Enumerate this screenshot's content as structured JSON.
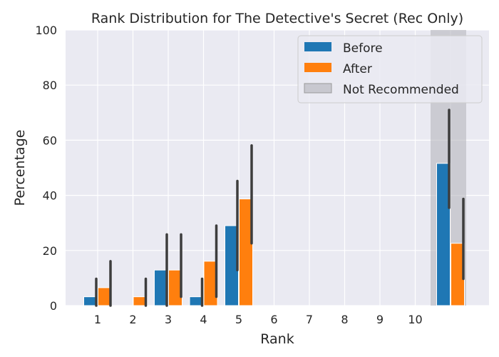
{
  "chart_data": {
    "type": "bar",
    "title": "Rank Distribution for The Detective's Secret (Rec Only)",
    "xlabel": "Rank",
    "ylabel": "Percentage",
    "ylim": [
      0,
      100
    ],
    "yticks": [
      0,
      20,
      40,
      60,
      80,
      100
    ],
    "categories": [
      "1",
      "2",
      "3",
      "4",
      "5",
      "6",
      "7",
      "8",
      "9",
      "10",
      ""
    ],
    "series": [
      {
        "name": "Before",
        "color": "#1f77b4",
        "values": [
          3.2,
          0,
          12.9,
          3.2,
          29.0,
          0,
          0,
          0,
          0,
          0,
          51.6
        ],
        "ci_low": [
          0,
          0,
          0,
          0,
          12.9,
          0,
          0,
          0,
          0,
          0,
          35.5
        ],
        "ci_high": [
          9.7,
          0,
          25.8,
          9.7,
          45.2,
          0,
          0,
          0,
          0,
          0,
          71.0
        ]
      },
      {
        "name": "After",
        "color": "#ff7f0e",
        "values": [
          6.5,
          3.2,
          12.9,
          16.1,
          38.7,
          0,
          0,
          0,
          0,
          0,
          22.6
        ],
        "ci_low": [
          0,
          0,
          3.2,
          3.2,
          22.6,
          0,
          0,
          0,
          0,
          0,
          9.7
        ],
        "ci_high": [
          16.1,
          9.7,
          25.8,
          29.0,
          58.1,
          0,
          0,
          0,
          0,
          0,
          38.7
        ]
      }
    ],
    "shaded_region": {
      "label": "Not Recommended",
      "category_index": 10,
      "color": "#b0b0b8"
    },
    "grid": true,
    "legend_position": "top-right"
  }
}
